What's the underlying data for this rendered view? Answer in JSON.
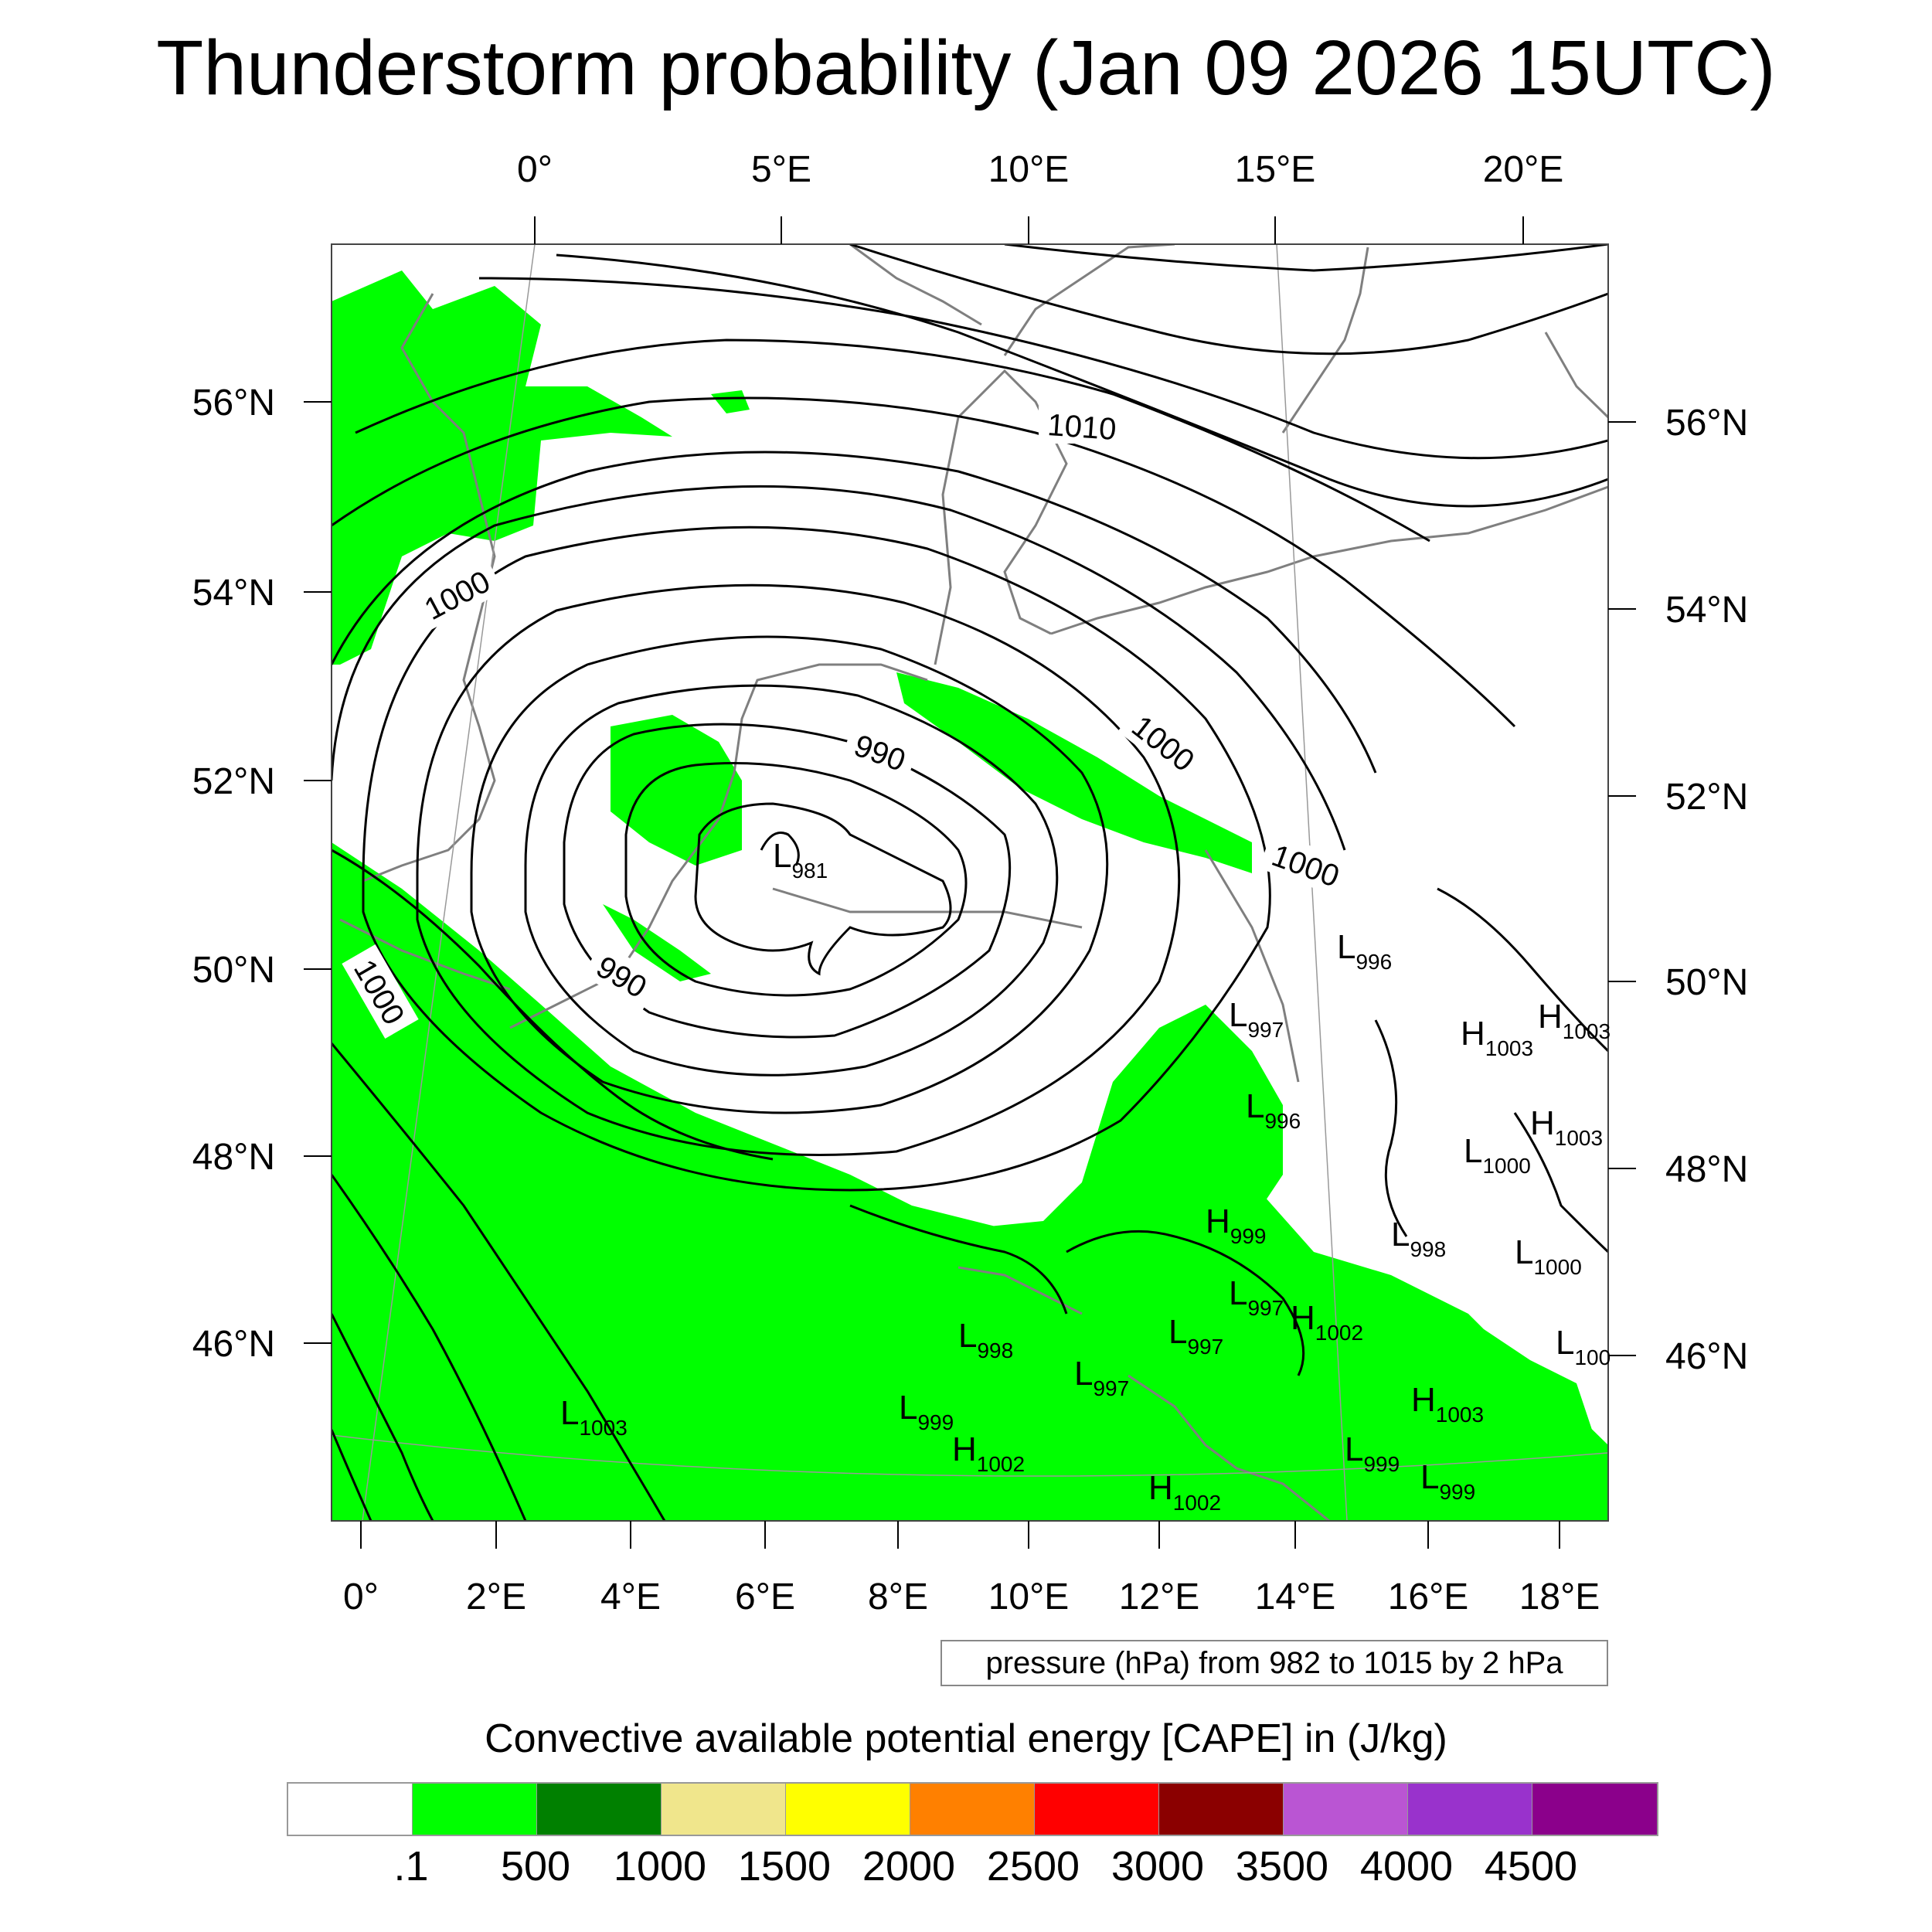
{
  "title": "Thunderstorm probability (Jan 09 2026 15UTC)",
  "map": {
    "top_lon_labels": [
      "0°",
      "5°E",
      "10°E",
      "15°E",
      "20°E"
    ],
    "bottom_lon_labels": [
      "0°",
      "2°E",
      "4°E",
      "6°E",
      "8°E",
      "10°E",
      "12°E",
      "14°E",
      "16°E",
      "18°E"
    ],
    "left_lat_labels": [
      "56°N",
      "54°N",
      "52°N",
      "50°N",
      "48°N",
      "46°N"
    ],
    "right_lat_labels": [
      "56°N",
      "54°N",
      "52°N",
      "50°N",
      "48°N",
      "46°N"
    ],
    "contour_labels": [
      "1010",
      "1000",
      "990",
      "1000",
      "990",
      "1000",
      "1000"
    ],
    "pressure_centers": [
      {
        "type": "L",
        "value": "981"
      },
      {
        "type": "L",
        "value": "996"
      },
      {
        "type": "L",
        "value": "997"
      },
      {
        "type": "H",
        "value": "1003"
      },
      {
        "type": "H",
        "value": "1003"
      },
      {
        "type": "L",
        "value": "996"
      },
      {
        "type": "H",
        "value": "1003"
      },
      {
        "type": "L",
        "value": "1000"
      },
      {
        "type": "H",
        "value": "999"
      },
      {
        "type": "L",
        "value": "998"
      },
      {
        "type": "L",
        "value": "1000"
      },
      {
        "type": "L",
        "value": "997"
      },
      {
        "type": "L",
        "value": "997"
      },
      {
        "type": "H",
        "value": "1002"
      },
      {
        "type": "L",
        "value": "998"
      },
      {
        "type": "L",
        "value": "100"
      },
      {
        "type": "L",
        "value": "997"
      },
      {
        "type": "L",
        "value": "999"
      },
      {
        "type": "H",
        "value": "1003"
      },
      {
        "type": "L",
        "value": "1003"
      },
      {
        "type": "H",
        "value": "1002"
      },
      {
        "type": "L",
        "value": "999"
      },
      {
        "type": "L",
        "value": "999"
      },
      {
        "type": "H",
        "value": "1002"
      }
    ],
    "colors": {
      "cape_green": "#00ff00",
      "contour": "#000000",
      "coast": "#7f7f7f"
    }
  },
  "info_box": "pressure (hPa) from 982 to 1015 by 2 hPa",
  "colorbar": {
    "title": "Convective available potential energy [CAPE] in (J/kg)",
    "colors": [
      "#ffffff",
      "#00ff00",
      "#008000",
      "#f0e68c",
      "#ffff00",
      "#ff8000",
      "#ff0000",
      "#8b0000",
      "#ba55d3",
      "#9932cc",
      "#8b008b"
    ],
    "tick_labels": [
      ".1",
      "500",
      "1000",
      "1500",
      "2000",
      "2500",
      "3000",
      "3500",
      "4000",
      "4500"
    ]
  }
}
